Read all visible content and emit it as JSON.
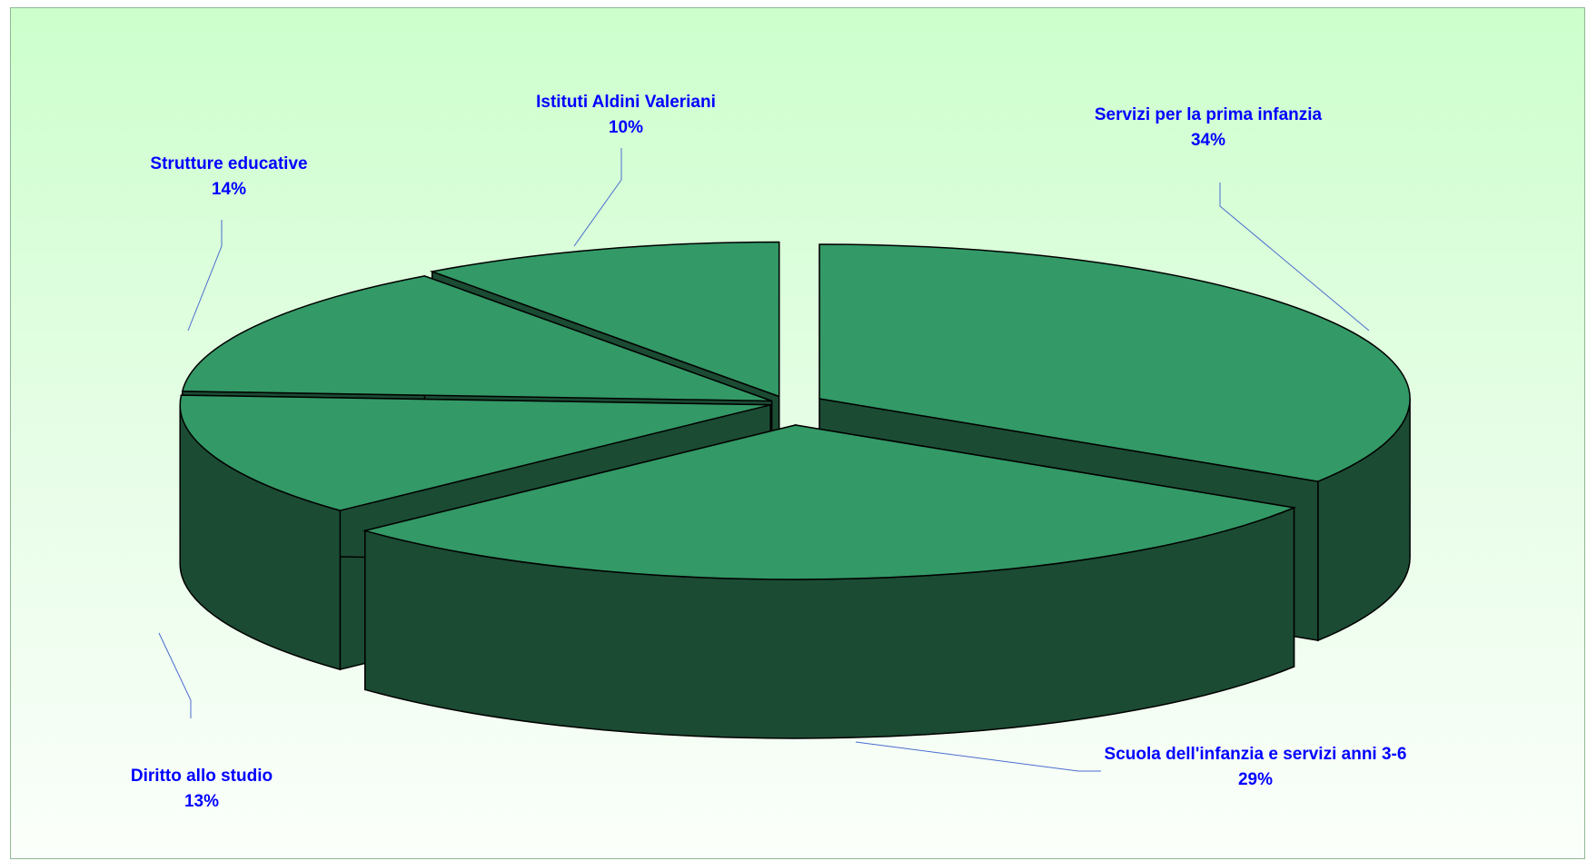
{
  "chart_data": {
    "type": "pie",
    "style": "3d-exploded",
    "title": "",
    "colors": {
      "top": "#339966",
      "side": "#1b4b33",
      "leader": "#4a6ccf",
      "label": "#0000ff",
      "edge": "#000000"
    },
    "slices": [
      {
        "name": "Servizi per la prima infanzia",
        "value": 34,
        "label": "Servizi per la prima infanzia",
        "percent": "34%"
      },
      {
        "name": "Scuola dell'infanzia e servizi anni 3-6",
        "value": 29,
        "label": "Scuola dell'infanzia e servizi anni 3-6",
        "percent": "29%"
      },
      {
        "name": "Diritto allo studio",
        "value": 13,
        "label": "Diritto allo studio",
        "percent": "13%"
      },
      {
        "name": "Strutture educative",
        "value": 14,
        "label": "Strutture educative",
        "percent": "14%"
      },
      {
        "name": "Istituti Aldini Valeriani",
        "value": 10,
        "label": "Istituti Aldini Valeriani",
        "percent": "10%"
      }
    ]
  }
}
